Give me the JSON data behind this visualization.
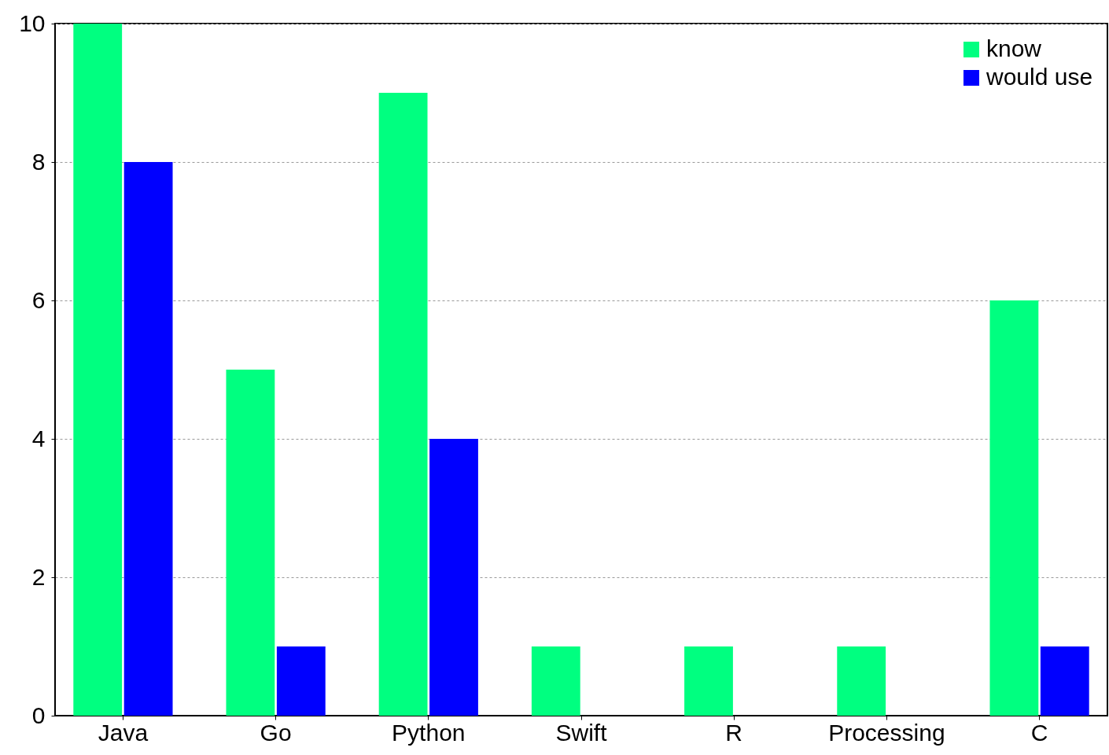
{
  "chart_data": {
    "type": "bar",
    "categories": [
      "Java",
      "Go",
      "Python",
      "Swift",
      "R",
      "Processing",
      "C"
    ],
    "series": [
      {
        "name": "know",
        "color": "#00ff80",
        "values": [
          10,
          5,
          9,
          1,
          1,
          1,
          6
        ]
      },
      {
        "name": "would use",
        "color": "#0000ff",
        "values": [
          8,
          1,
          4,
          0,
          0,
          0,
          1
        ]
      }
    ],
    "ylim": [
      0,
      10
    ],
    "yticks": [
      0,
      2,
      4,
      6,
      8,
      10
    ],
    "grid": "y",
    "legend": "top right"
  }
}
